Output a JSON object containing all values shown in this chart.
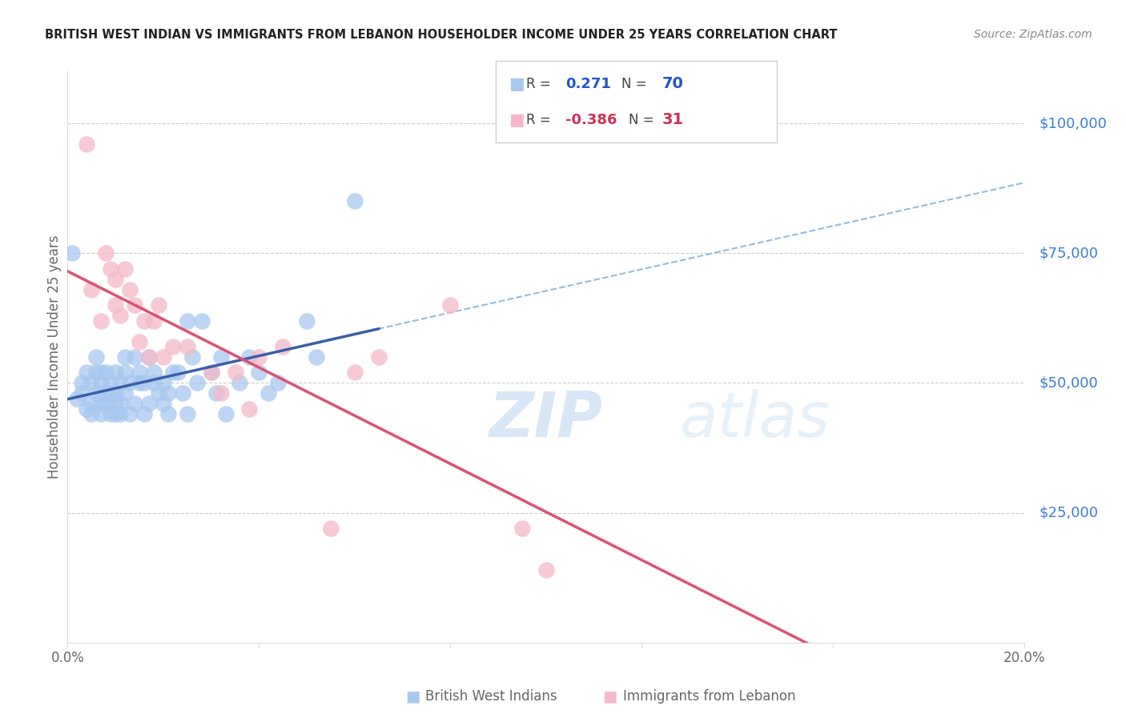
{
  "title": "BRITISH WEST INDIAN VS IMMIGRANTS FROM LEBANON HOUSEHOLDER INCOME UNDER 25 YEARS CORRELATION CHART",
  "source": "Source: ZipAtlas.com",
  "ylabel": "Householder Income Under 25 years",
  "ytick_values": [
    25000,
    50000,
    75000,
    100000
  ],
  "ytick_labels": [
    "$25,000",
    "$50,000",
    "$75,000",
    "$100,000"
  ],
  "R1": 0.271,
  "N1": 70,
  "R2": -0.386,
  "N2": 31,
  "blue_scatter_color": "#a8c8f0",
  "pink_scatter_color": "#f5b8c8",
  "blue_line_color": "#3a5fa8",
  "pink_line_color": "#e05070",
  "dashed_line_color": "#90bce0",
  "ytick_color": "#3a7dd4",
  "grid_color": "#cccccc",
  "legend1": "British West Indians",
  "legend2": "Immigrants from Lebanon",
  "watermark_zip_color": "#b8d4f0",
  "watermark_atlas_color": "#c8e0f5",
  "blue_x": [
    0.001,
    0.002,
    0.003,
    0.003,
    0.004,
    0.004,
    0.005,
    0.005,
    0.005,
    0.006,
    0.006,
    0.006,
    0.007,
    0.007,
    0.007,
    0.007,
    0.007,
    0.008,
    0.008,
    0.008,
    0.009,
    0.009,
    0.009,
    0.01,
    0.01,
    0.01,
    0.01,
    0.011,
    0.011,
    0.011,
    0.012,
    0.012,
    0.012,
    0.013,
    0.013,
    0.014,
    0.014,
    0.015,
    0.015,
    0.016,
    0.016,
    0.017,
    0.017,
    0.018,
    0.018,
    0.019,
    0.02,
    0.02,
    0.021,
    0.021,
    0.022,
    0.023,
    0.024,
    0.025,
    0.025,
    0.026,
    0.027,
    0.028,
    0.03,
    0.031,
    0.032,
    0.033,
    0.036,
    0.038,
    0.04,
    0.042,
    0.044,
    0.05,
    0.052,
    0.06
  ],
  "blue_y": [
    75000,
    47000,
    48000,
    50000,
    45000,
    52000,
    44000,
    46000,
    50000,
    48000,
    52000,
    55000,
    44000,
    46000,
    48000,
    50000,
    52000,
    46000,
    48000,
    52000,
    44000,
    48000,
    50000,
    44000,
    46000,
    48000,
    52000,
    44000,
    46000,
    50000,
    48000,
    52000,
    55000,
    44000,
    50000,
    46000,
    55000,
    50000,
    52000,
    44000,
    50000,
    46000,
    55000,
    50000,
    52000,
    48000,
    46000,
    50000,
    44000,
    48000,
    52000,
    52000,
    48000,
    44000,
    62000,
    55000,
    50000,
    62000,
    52000,
    48000,
    55000,
    44000,
    50000,
    55000,
    52000,
    48000,
    50000,
    62000,
    55000,
    85000
  ],
  "pink_x": [
    0.004,
    0.005,
    0.007,
    0.008,
    0.009,
    0.01,
    0.01,
    0.011,
    0.012,
    0.013,
    0.014,
    0.015,
    0.016,
    0.017,
    0.018,
    0.019,
    0.02,
    0.022,
    0.025,
    0.03,
    0.032,
    0.035,
    0.038,
    0.04,
    0.045,
    0.055,
    0.06,
    0.065,
    0.08,
    0.095,
    0.1
  ],
  "pink_y": [
    96000,
    68000,
    62000,
    75000,
    72000,
    65000,
    70000,
    63000,
    72000,
    68000,
    65000,
    58000,
    62000,
    55000,
    62000,
    65000,
    55000,
    57000,
    57000,
    52000,
    48000,
    52000,
    45000,
    55000,
    57000,
    22000,
    52000,
    55000,
    65000,
    22000,
    14000
  ]
}
